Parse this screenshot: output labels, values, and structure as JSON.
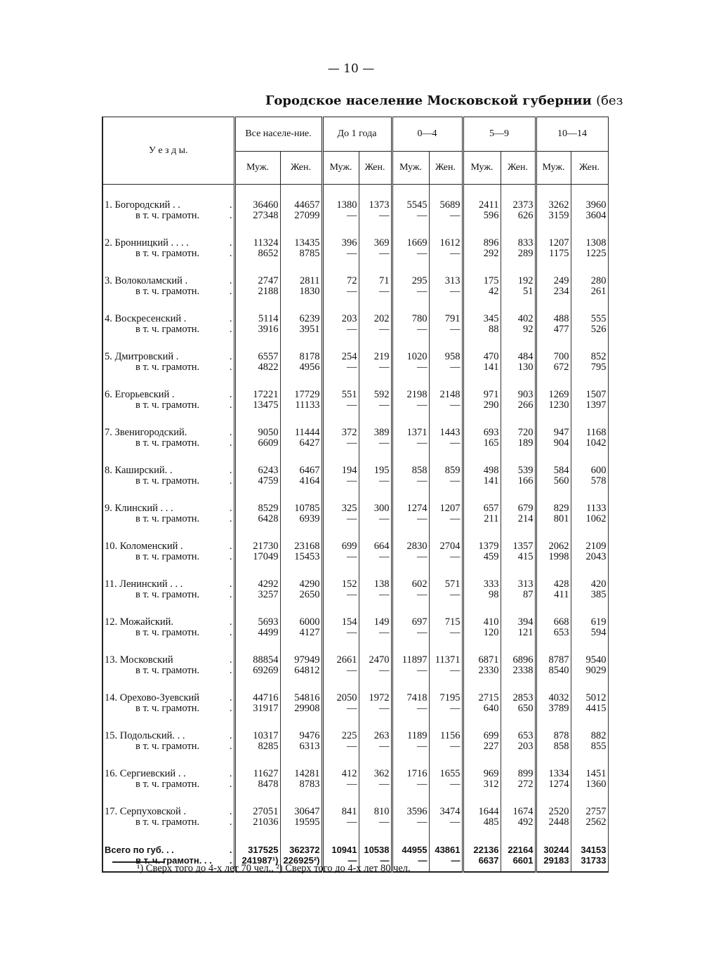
{
  "page_number": "— 10 —",
  "title": "Городское население Московской губернии",
  "title_paren": "(без",
  "header": {
    "district_label": "У е з д ы.",
    "groups": [
      "Все населе-ние.",
      "До 1 года",
      "0—4",
      "5—9",
      "10—14"
    ],
    "sub": [
      "Муж.",
      "Жен."
    ]
  },
  "literate_label": "в т. ч. грамотн.",
  "rows": [
    {
      "name": "1. Богородский . .",
      "total": [
        "36460",
        "44657",
        "1380",
        "1373",
        "5545",
        "5689",
        "2411",
        "2373",
        "3262",
        "3960"
      ],
      "literate": [
        "27348",
        "27099",
        "—",
        "—",
        "—",
        "—",
        "596",
        "626",
        "3159",
        "3604"
      ]
    },
    {
      "name": "2. Бронницкий . . . .",
      "total": [
        "11324",
        "13435",
        "396",
        "369",
        "1669",
        "1612",
        "896",
        "833",
        "1207",
        "1308"
      ],
      "literate": [
        "8652",
        "8785",
        "—",
        "—",
        "—",
        "—",
        "292",
        "289",
        "1175",
        "1225"
      ]
    },
    {
      "name": "3. Волоколамский .",
      "total": [
        "2747",
        "2811",
        "72",
        "71",
        "295",
        "313",
        "175",
        "192",
        "249",
        "280"
      ],
      "literate": [
        "2188",
        "1830",
        "—",
        "—",
        "—",
        "—",
        "42",
        "51",
        "234",
        "261"
      ]
    },
    {
      "name": "4. Воскресенский .",
      "total": [
        "5114",
        "6239",
        "203",
        "202",
        "780",
        "791",
        "345",
        "402",
        "488",
        "555"
      ],
      "literate": [
        "3916",
        "3951",
        "—",
        "—",
        "—",
        "—",
        "88",
        "92",
        "477",
        "526"
      ]
    },
    {
      "name": "5. Дмитровский .",
      "total": [
        "6557",
        "8178",
        "254",
        "219",
        "1020",
        "958",
        "470",
        "484",
        "700",
        "852"
      ],
      "literate": [
        "4822",
        "4956",
        "—",
        "—",
        "—",
        "—",
        "141",
        "130",
        "672",
        "795"
      ]
    },
    {
      "name": "6. Егорьевский .",
      "total": [
        "17221",
        "17729",
        "551",
        "592",
        "2198",
        "2148",
        "971",
        "903",
        "1269",
        "1507"
      ],
      "literate": [
        "13475",
        "11133",
        "—",
        "—",
        "—",
        "—",
        "290",
        "266",
        "1230",
        "1397"
      ]
    },
    {
      "name": "7. Звенигородский.",
      "total": [
        "9050",
        "11444",
        "372",
        "389",
        "1371",
        "1443",
        "693",
        "720",
        "947",
        "1168"
      ],
      "literate": [
        "6609",
        "6427",
        "—",
        "—",
        "—",
        "—",
        "165",
        "189",
        "904",
        "1042"
      ]
    },
    {
      "name": "8. Каширский. .",
      "total": [
        "6243",
        "6467",
        "194",
        "195",
        "858",
        "859",
        "498",
        "539",
        "584",
        "600"
      ],
      "literate": [
        "4759",
        "4164",
        "—",
        "—",
        "—",
        "—",
        "141",
        "166",
        "560",
        "578"
      ]
    },
    {
      "name": "9. Клинский . . .",
      "total": [
        "8529",
        "10785",
        "325",
        "300",
        "1274",
        "1207",
        "657",
        "679",
        "829",
        "1133"
      ],
      "literate": [
        "6428",
        "6939",
        "—",
        "—",
        "—",
        "—",
        "211",
        "214",
        "801",
        "1062"
      ]
    },
    {
      "name": "10. Коломенский .",
      "total": [
        "21730",
        "23168",
        "699",
        "664",
        "2830",
        "2704",
        "1379",
        "1357",
        "2062",
        "2109"
      ],
      "literate": [
        "17049",
        "15453",
        "—",
        "—",
        "—",
        "—",
        "459",
        "415",
        "1998",
        "2043"
      ]
    },
    {
      "name": "11. Ленинский . . .",
      "total": [
        "4292",
        "4290",
        "152",
        "138",
        "602",
        "571",
        "333",
        "313",
        "428",
        "420"
      ],
      "literate": [
        "3257",
        "2650",
        "—",
        "—",
        "—",
        "—",
        "98",
        "87",
        "411",
        "385"
      ]
    },
    {
      "name": "12. Можайский.",
      "total": [
        "5693",
        "6000",
        "154",
        "149",
        "697",
        "715",
        "410",
        "394",
        "668",
        "619"
      ],
      "literate": [
        "4499",
        "4127",
        "—",
        "—",
        "—",
        "—",
        "120",
        "121",
        "653",
        "594"
      ]
    },
    {
      "name": "13. Московский",
      "total": [
        "88854",
        "97949",
        "2661",
        "2470",
        "11897",
        "11371",
        "6871",
        "6896",
        "8787",
        "9540"
      ],
      "literate": [
        "69269",
        "64812",
        "—",
        "—",
        "—",
        "—",
        "2330",
        "2338",
        "8540",
        "9029"
      ]
    },
    {
      "name": "14. Орехово-Зуевский",
      "total": [
        "44716",
        "54816",
        "2050",
        "1972",
        "7418",
        "7195",
        "2715",
        "2853",
        "4032",
        "5012"
      ],
      "literate": [
        "31917",
        "29908",
        "—",
        "—",
        "—",
        "—",
        "640",
        "650",
        "3789",
        "4415"
      ]
    },
    {
      "name": "15. Подольский. . .",
      "total": [
        "10317",
        "9476",
        "225",
        "263",
        "1189",
        "1156",
        "699",
        "653",
        "878",
        "882"
      ],
      "literate": [
        "8285",
        "6313",
        "—",
        "—",
        "—",
        "—",
        "227",
        "203",
        "858",
        "855"
      ]
    },
    {
      "name": "16. Сергиевский . .",
      "total": [
        "11627",
        "14281",
        "412",
        "362",
        "1716",
        "1655",
        "969",
        "899",
        "1334",
        "1451"
      ],
      "literate": [
        "8478",
        "8783",
        "—",
        "—",
        "—",
        "—",
        "312",
        "272",
        "1274",
        "1360"
      ]
    },
    {
      "name": "17. Серпуховской .",
      "total": [
        "27051",
        "30647",
        "841",
        "810",
        "3596",
        "3474",
        "1644",
        "1674",
        "2520",
        "2757"
      ],
      "literate": [
        "21036",
        "19595",
        "—",
        "—",
        "—",
        "—",
        "485",
        "492",
        "2448",
        "2562"
      ]
    }
  ],
  "grand_total": {
    "name": "Всего по губ. . .",
    "literate_name": "в т. ч. грамотн. . .",
    "total": [
      "317525",
      "362372",
      "10941",
      "10538",
      "44955",
      "43861",
      "22136",
      "22164",
      "30244",
      "34153"
    ],
    "literate": [
      "241987¹)",
      "226925²)",
      "—",
      "—",
      "—",
      "—",
      "6637",
      "6601",
      "29183",
      "31733"
    ]
  },
  "footnote": "¹) Сверх того до 4-х лет 70 чел., ²) Сверх того до 4-х лет 80 чел."
}
